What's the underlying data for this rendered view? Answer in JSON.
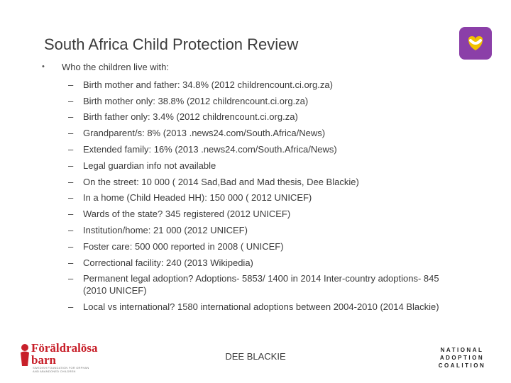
{
  "title": "South Africa Child Protection Review",
  "bullet_marker": "•",
  "main_bullet": "Who the children live with:",
  "dash": "–",
  "items": [
    "Birth mother and father: 34.8% (2012 childrencount.ci.org.za)",
    "Birth mother only: 38.8% (2012 childrencount.ci.org.za)",
    "Birth father only: 3.4% (2012 childrencount.ci.org.za)",
    "Grandparent/s: 8% (2013 .news24.com/South.Africa/News)",
    "Extended family: 16% (2013 .news24.com/South.Africa/News)",
    "Legal guardian info not available",
    "On the street: 10 000 ( 2014 Sad,Bad and Mad thesis, Dee Blackie)",
    "In a home (Child Headed HH): 150 000 ( 2012 UNICEF)",
    "Wards of the state? 345 registered (2012 UNICEF)",
    "Institution/home: 21 000 (2012 UNICEF)",
    "Foster care: 500 000 reported in 2008 ( UNICEF)",
    "Correctional facility: 240 (2013 Wikipedia)",
    "Permanent legal adoption? Adoptions- 5853/ 1400 in 2014 Inter-country adoptions- 845 (2010 UNICEF)",
    "Local vs international? 1580 international adoptions between 2004-2010 (2014 Blackie)"
  ],
  "footer": "DEE BLACKIE",
  "logo_left": {
    "line1": "Föräldralösa",
    "line2": "barn",
    "small1": "SWEDISH FOUNDATION FOR ORPHAN",
    "small2": "AND ABANDONED CHILDREN"
  },
  "logo_right": {
    "line1": "NATIONAL",
    "line2": "ADOPTION",
    "line3": "COALITION"
  },
  "colors": {
    "logo_purple": "#8b3fa8",
    "logo_red": "#c8202a"
  }
}
